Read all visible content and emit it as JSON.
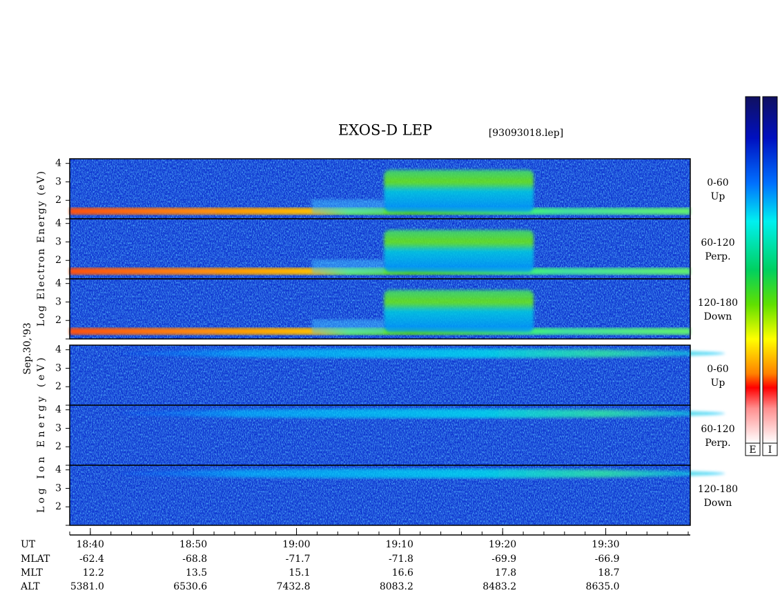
{
  "chart_data": {
    "type": "spectrogram",
    "title": "EXOS-D LEP",
    "file_label": "[93093018.lep]",
    "date_label": "Sep.30,'93",
    "groups": [
      {
        "label": "Log Electron Energy (eV)",
        "species": "electron",
        "panels": [
          {
            "labels": [
              "0-60",
              "Up"
            ]
          },
          {
            "labels": [
              "60-120",
              "Perp."
            ]
          },
          {
            "labels": [
              "120-180",
              "Down"
            ]
          }
        ]
      },
      {
        "label": "Log Ion Energy (eV)",
        "species": "ion",
        "panels": [
          {
            "labels": [
              "0-60",
              "Up"
            ]
          },
          {
            "labels": [
              "60-120",
              "Perp."
            ]
          },
          {
            "labels": [
              "120-180",
              "Down"
            ]
          }
        ]
      }
    ],
    "ylim": [
      1,
      4.25
    ],
    "yticks": [
      2,
      3,
      4
    ],
    "xlabel": "UT",
    "xlim": [
      38,
      98.2
    ],
    "xticks": [
      {
        "value": 40,
        "label": "18:40"
      },
      {
        "value": 50,
        "label": "18:50"
      },
      {
        "value": 60,
        "label": "19:00"
      },
      {
        "value": 70,
        "label": "19:10"
      },
      {
        "value": 80,
        "label": "19:20"
      },
      {
        "value": 90,
        "label": "19:30"
      }
    ],
    "colorbar_labels": [
      "E",
      "I"
    ],
    "ephemeris": {
      "labels": [
        "MLAT",
        "MLT",
        "ALT"
      ],
      "rows": [
        [
          "-62.4",
          "-68.8",
          "-71.7",
          "-71.8",
          "-69.9",
          "-66.9"
        ],
        [
          "12.2",
          "13.5",
          "15.1",
          "16.6",
          "17.8",
          "18.7"
        ],
        [
          "5381.0",
          "6530.6",
          "7432.8",
          "8083.2",
          "8483.2",
          "8635.0"
        ]
      ]
    }
  }
}
